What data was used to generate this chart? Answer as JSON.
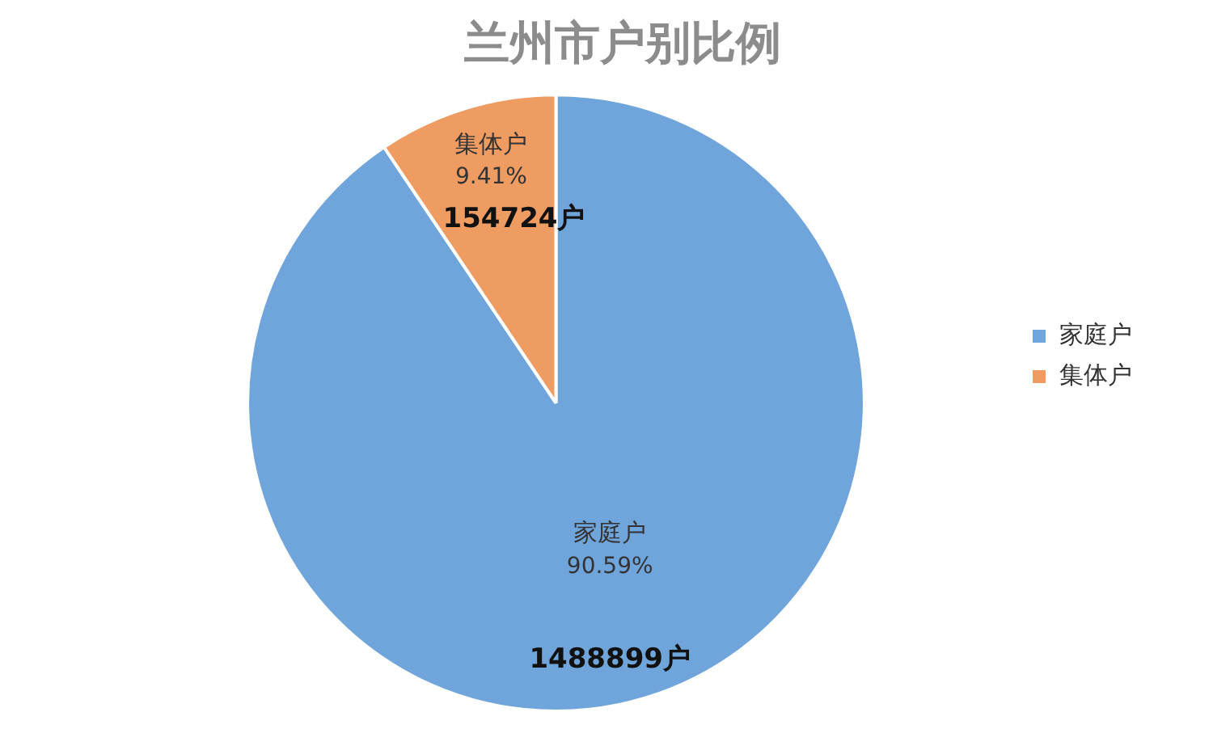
{
  "chart_data": {
    "type": "pie",
    "title": "兰州市户别比例",
    "categories": [
      "家庭户",
      "集体户"
    ],
    "values": [
      1488899,
      154724
    ],
    "colors": [
      "#6fa5db",
      "#ef9c63"
    ],
    "value_labels": [
      "1488899户",
      "154724户"
    ],
    "annotations": [
      "90.59%",
      "9.41%"
    ],
    "legend": "right"
  }
}
